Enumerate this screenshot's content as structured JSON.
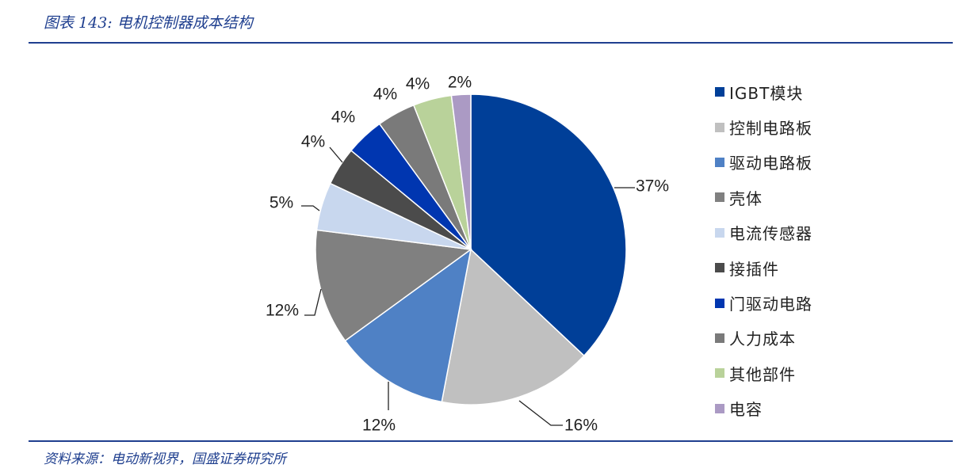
{
  "header": {
    "title": "图表 143:  电机控制器成本结构"
  },
  "footer": {
    "source": "资料来源：电动新视界，国盛证券研究所"
  },
  "chart_data": {
    "type": "pie",
    "title": "",
    "slices": [
      {
        "label": "IGBT模块",
        "value": 37,
        "value_label": "37%",
        "color": "#003f98"
      },
      {
        "label": "控制电路板",
        "value": 16,
        "value_label": "16%",
        "color": "#c0c0c0"
      },
      {
        "label": "驱动电路板",
        "value": 12,
        "value_label": "12%",
        "color": "#4f81c5"
      },
      {
        "label": "壳体",
        "value": 12,
        "value_label": "12%",
        "color": "#808080"
      },
      {
        "label": "电流传感器",
        "value": 5,
        "value_label": "5%",
        "color": "#c8d7ee"
      },
      {
        "label": "接插件",
        "value": 4,
        "value_label": "4%",
        "color": "#4b4b4b"
      },
      {
        "label": "门驱动电路",
        "value": 4,
        "value_label": "4%",
        "color": "#0036b0"
      },
      {
        "label": "人力成本",
        "value": 4,
        "value_label": "4%",
        "color": "#7a7a7a"
      },
      {
        "label": "其他部件",
        "value": 4,
        "value_label": "4%",
        "color": "#b9d29a"
      },
      {
        "label": "电容",
        "value": 2,
        "value_label": "2%",
        "color": "#ab9ac4"
      }
    ],
    "legend_position": "right"
  }
}
